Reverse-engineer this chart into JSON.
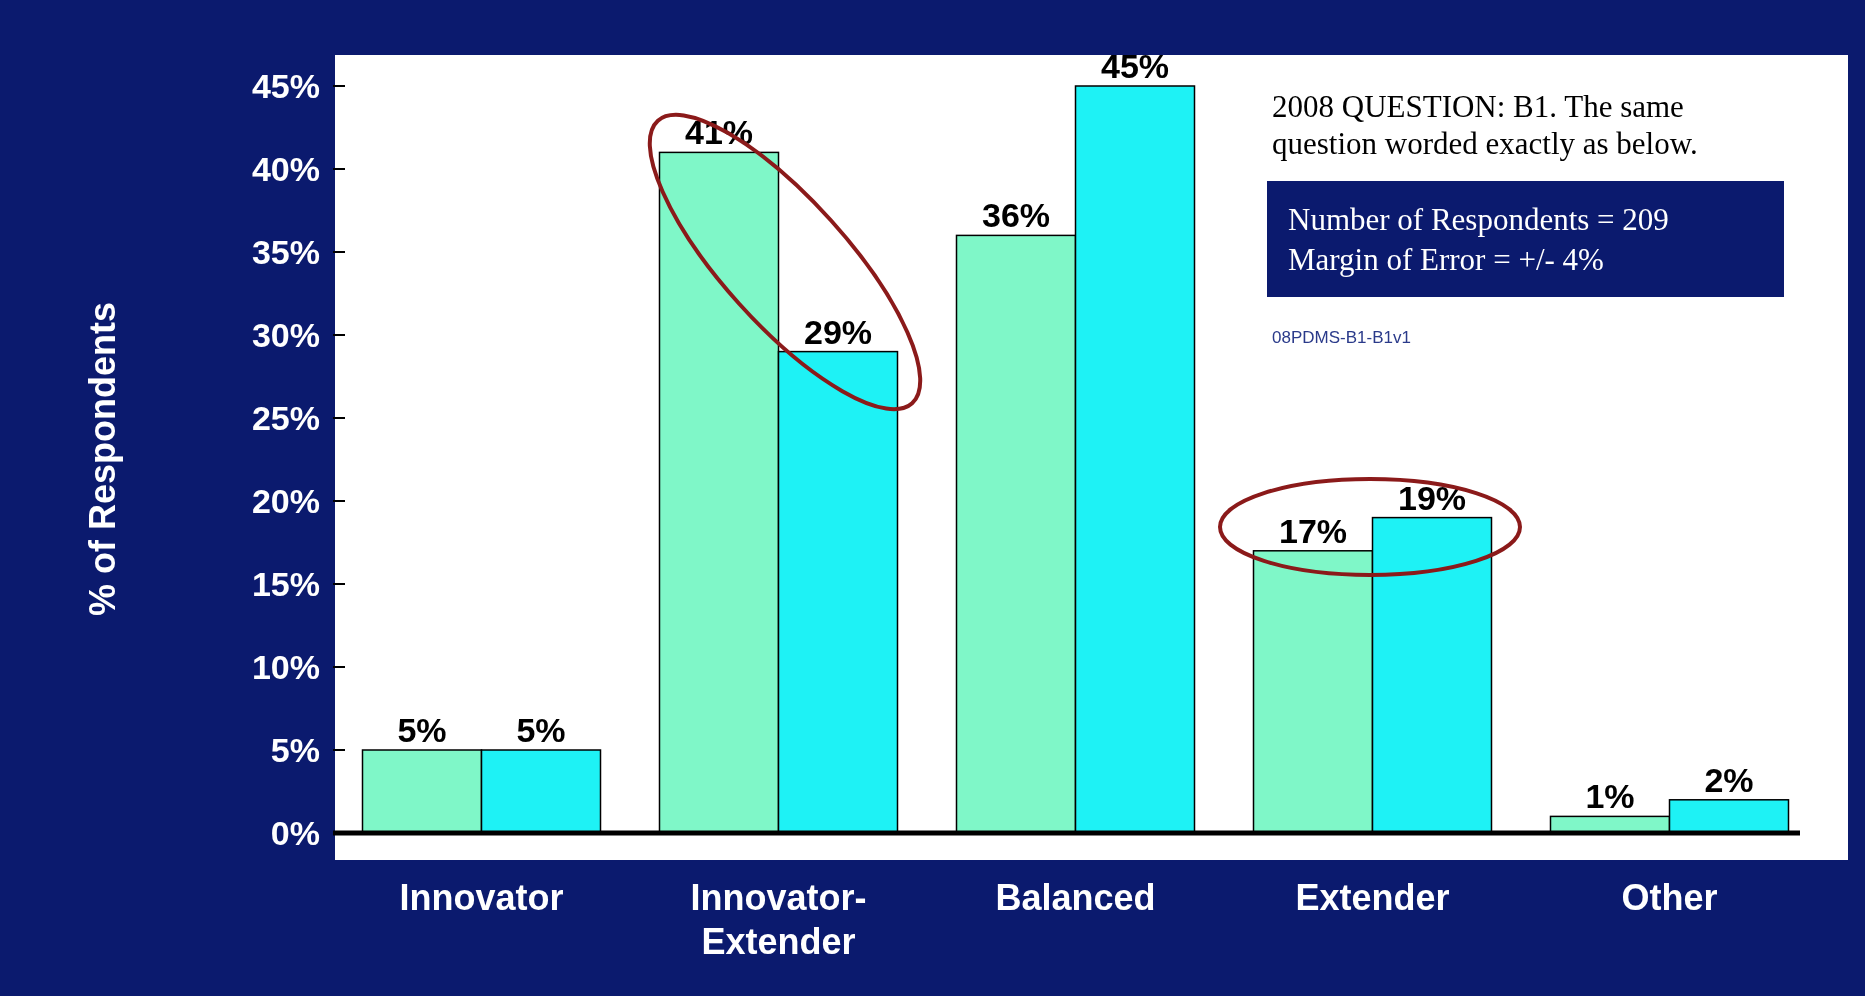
{
  "chart_data": {
    "type": "bar",
    "ylabel": "% of Respondents",
    "categories": [
      "Innovator",
      "Innovator-Extender",
      "Balanced",
      "Extender",
      "Other"
    ],
    "series": [
      {
        "color": "#7ff7c8",
        "values": [
          5,
          41,
          36,
          17,
          1
        ],
        "value_labels": [
          "5%",
          "41%",
          "36%",
          "17%",
          "1%"
        ]
      },
      {
        "color": "#1ef2f5",
        "values": [
          5,
          29,
          45,
          19,
          2
        ],
        "value_labels": [
          "5%",
          "29%",
          "45%",
          "19%",
          "2%"
        ]
      }
    ],
    "ylim": [
      0,
      45
    ],
    "yticks": [
      {
        "value": 0,
        "label": "0%"
      },
      {
        "value": 5,
        "label": "5%"
      },
      {
        "value": 10,
        "label": "10%"
      },
      {
        "value": 15,
        "label": "15%"
      },
      {
        "value": 20,
        "label": "20%"
      },
      {
        "value": 25,
        "label": "25%"
      },
      {
        "value": 30,
        "label": "30%"
      },
      {
        "value": 35,
        "label": "35%"
      },
      {
        "value": 40,
        "label": "40%"
      },
      {
        "value": 45,
        "label": "45%"
      }
    ],
    "annotations": [
      "2008 QUESTION:  B1. The same\nquestion worded exactly as below.",
      "Number of Respondents = 209\nMargin of Error = +/- 4%",
      "08PDMS-B1-B1v1"
    ]
  }
}
